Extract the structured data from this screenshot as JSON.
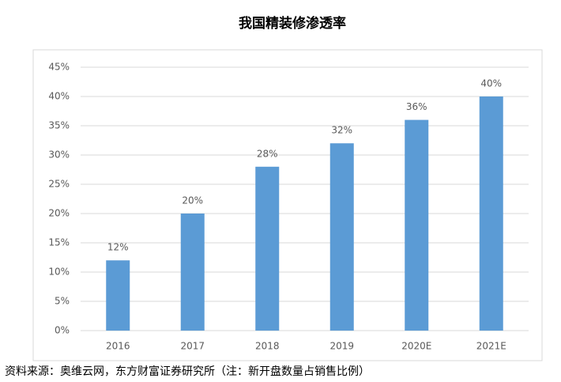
{
  "chart_data": {
    "type": "bar",
    "title": "我国精装修渗透率",
    "categories": [
      "2016",
      "2017",
      "2018",
      "2019",
      "2020E",
      "2021E"
    ],
    "values": [
      12,
      20,
      28,
      32,
      36,
      40
    ],
    "value_labels": [
      "12%",
      "20%",
      "28%",
      "32%",
      "36%",
      "40%"
    ],
    "color": "#5b9bd5",
    "ylim": [
      0,
      45
    ],
    "yticks": [
      {
        "value": 0,
        "label": "0%"
      },
      {
        "value": 5,
        "label": "5%"
      },
      {
        "value": 10,
        "label": "10%"
      },
      {
        "value": 15,
        "label": "15%"
      },
      {
        "value": 20,
        "label": "20%"
      },
      {
        "value": 25,
        "label": "25%"
      },
      {
        "value": 30,
        "label": "30%"
      },
      {
        "value": 35,
        "label": "35%"
      },
      {
        "value": 40,
        "label": "40%"
      },
      {
        "value": 45,
        "label": "45%"
      }
    ],
    "grid": true,
    "source": "资料来源：奥维云网，东方财富证券研究所（注：新开盘数量占销售比例）"
  }
}
